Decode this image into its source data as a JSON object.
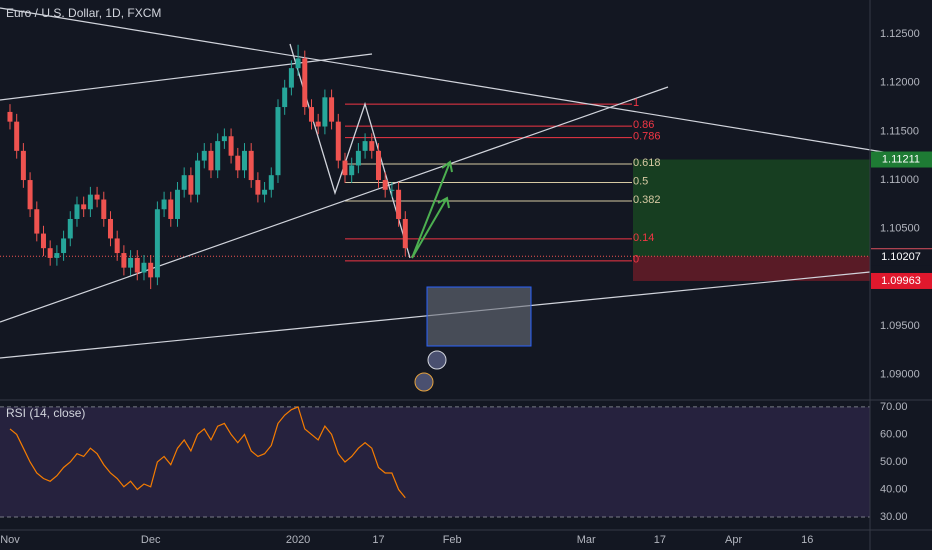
{
  "chart_data": [
    {
      "type": "candlestick",
      "title": "Euro / U.S. Dollar, 1D, FXCM",
      "x": [
        0,
        1,
        2,
        3,
        4,
        5,
        6,
        7,
        8,
        9,
        10,
        11,
        12,
        13,
        14,
        15,
        16,
        17,
        18,
        19,
        20,
        21,
        22,
        23,
        24,
        25,
        26,
        27,
        28,
        29,
        30,
        31,
        32,
        33,
        34,
        35,
        36,
        37,
        38,
        39,
        40,
        41,
        42,
        43,
        44,
        45,
        46,
        47,
        48,
        49,
        50,
        51,
        52,
        53,
        54,
        55,
        56,
        57,
        58,
        59
      ],
      "open": [
        1.117,
        1.116,
        1.113,
        1.11,
        1.107,
        1.1045,
        1.103,
        1.102,
        1.1025,
        1.104,
        1.106,
        1.1075,
        1.107,
        1.1085,
        1.108,
        1.106,
        1.104,
        1.1025,
        1.101,
        1.102,
        1.1005,
        1.1015,
        1.1,
        1.107,
        1.108,
        1.106,
        1.109,
        1.1105,
        1.1085,
        1.112,
        1.113,
        1.111,
        1.114,
        1.1145,
        1.1125,
        1.111,
        1.113,
        1.11,
        1.1085,
        1.109,
        1.1105,
        1.1175,
        1.1195,
        1.1215,
        1.1225,
        1.1175,
        1.116,
        1.1155,
        1.1185,
        1.116,
        1.112,
        1.1105,
        1.1115,
        1.113,
        1.114,
        1.113,
        1.11,
        1.109,
        1.109,
        1.106
      ],
      "high": [
        1.1178,
        1.1168,
        1.1138,
        1.1108,
        1.1078,
        1.1053,
        1.1038,
        1.1033,
        1.1048,
        1.1068,
        1.1083,
        1.1083,
        1.1093,
        1.1093,
        1.1088,
        1.1068,
        1.1048,
        1.1033,
        1.1028,
        1.1028,
        1.1023,
        1.1023,
        1.1078,
        1.1088,
        1.1088,
        1.1098,
        1.1113,
        1.1113,
        1.1128,
        1.1138,
        1.1138,
        1.1148,
        1.1153,
        1.1153,
        1.1133,
        1.1138,
        1.1138,
        1.1108,
        1.1098,
        1.1113,
        1.1183,
        1.1203,
        1.1223,
        1.1239,
        1.1233,
        1.1183,
        1.1168,
        1.1193,
        1.1193,
        1.1168,
        1.1128,
        1.1123,
        1.1138,
        1.1148,
        1.1148,
        1.1138,
        1.1108,
        1.1098,
        1.1098,
        1.1068
      ],
      "low": [
        1.1152,
        1.1122,
        1.1092,
        1.1062,
        1.1037,
        1.1022,
        1.1012,
        1.1012,
        1.1017,
        1.1032,
        1.1052,
        1.1062,
        1.1062,
        1.1072,
        1.1052,
        1.1032,
        1.1017,
        1.1002,
        1.1002,
        1.0997,
        1.0997,
        1.0988,
        1.0992,
        1.1062,
        1.1052,
        1.1052,
        1.1082,
        1.1077,
        1.1077,
        1.1112,
        1.1102,
        1.1102,
        1.1132,
        1.1117,
        1.1102,
        1.1102,
        1.1092,
        1.1077,
        1.1077,
        1.1082,
        1.1097,
        1.1167,
        1.1187,
        1.1207,
        1.1167,
        1.1152,
        1.1147,
        1.1147,
        1.1152,
        1.1112,
        1.1097,
        1.1097,
        1.1107,
        1.1122,
        1.1122,
        1.1092,
        1.1082,
        1.1082,
        1.1052,
        1.1022
      ],
      "close": [
        1.116,
        1.113,
        1.11,
        1.107,
        1.1045,
        1.103,
        1.102,
        1.1025,
        1.104,
        1.106,
        1.1075,
        1.107,
        1.1085,
        1.108,
        1.106,
        1.104,
        1.1025,
        1.101,
        1.102,
        1.1005,
        1.1015,
        1.1,
        1.107,
        1.108,
        1.106,
        1.109,
        1.1105,
        1.1085,
        1.112,
        1.113,
        1.111,
        1.114,
        1.1145,
        1.1125,
        1.111,
        1.113,
        1.11,
        1.1085,
        1.109,
        1.1105,
        1.1175,
        1.1195,
        1.1215,
        1.1225,
        1.1175,
        1.116,
        1.1155,
        1.1185,
        1.116,
        1.112,
        1.1105,
        1.1115,
        1.113,
        1.114,
        1.113,
        1.11,
        1.109,
        1.109,
        1.106,
        1.103
      ],
      "up_color": "#26a69a",
      "down_color": "#ef5350",
      "xlim": [
        -1.49,
        128.36
      ],
      "xticks": [
        {
          "value": 0,
          "label": "Nov"
        },
        {
          "value": 21,
          "label": "Dec"
        },
        {
          "value": 43,
          "label": "2020"
        },
        {
          "value": 55,
          "label": "17"
        },
        {
          "value": 66,
          "label": "Feb"
        },
        {
          "value": 86,
          "label": "Mar"
        },
        {
          "value": 97,
          "label": "17"
        },
        {
          "value": 108,
          "label": "Apr"
        },
        {
          "value": 119,
          "label": "16"
        }
      ],
      "ylim": [
        1.0874,
        1.1285
      ],
      "yticks": [
        {
          "value": 1.125,
          "label": "1.12500"
        },
        {
          "value": 1.12,
          "label": "1.12000"
        },
        {
          "value": 1.115,
          "label": "1.11500"
        },
        {
          "value": 1.11,
          "label": "1.11000"
        },
        {
          "value": 1.105,
          "label": "1.10500"
        },
        {
          "value": 1.095,
          "label": "1.09500"
        },
        {
          "value": 1.09,
          "label": "1.09000"
        }
      ],
      "fib_range": [
        1.1017,
        1.1178
      ],
      "fib_levels": [
        1,
        0.86,
        0.786,
        0.618,
        0.5,
        0.382,
        0.14,
        0
      ],
      "fib_colors": [
        "#f23645",
        "#f23645",
        "#f23645",
        "#d6c9a3",
        "#d6c9a3",
        "#d6c9a3",
        "#f23645",
        "#f23645"
      ],
      "position": {
        "target": 1.11211,
        "entry": 1.10217,
        "stop": 1.09963
      },
      "trendline_price": 1.10207
    },
    {
      "type": "line",
      "title": "RSI (14, close)",
      "x": [
        0,
        1,
        2,
        3,
        4,
        5,
        6,
        7,
        8,
        9,
        10,
        11,
        12,
        13,
        14,
        15,
        16,
        17,
        18,
        19,
        20,
        21,
        22,
        23,
        24,
        25,
        26,
        27,
        28,
        29,
        30,
        31,
        32,
        33,
        34,
        35,
        36,
        37,
        38,
        39,
        40,
        41,
        42,
        43,
        44,
        45,
        46,
        47,
        48,
        49,
        50,
        51,
        52,
        53,
        54,
        55,
        56,
        57,
        58,
        59
      ],
      "values": [
        62,
        60,
        55,
        50,
        46,
        44,
        43,
        45,
        48,
        50,
        53,
        52,
        55,
        53,
        49,
        46,
        44,
        41,
        43,
        40,
        42,
        41,
        50,
        52,
        49,
        55,
        58,
        54,
        60,
        62,
        58,
        63,
        64,
        60,
        57,
        60,
        54,
        52,
        53,
        56,
        64,
        67,
        69,
        70,
        62,
        60,
        58,
        63,
        60,
        53,
        50,
        52,
        55,
        57,
        55,
        48,
        46,
        46,
        40,
        37
      ],
      "color": "#f57c00",
      "ylim": [
        25.3,
        72.5
      ],
      "yticks": [
        {
          "value": 30,
          "label": "30.00"
        },
        {
          "value": 40,
          "label": "40.00"
        },
        {
          "value": 50,
          "label": "50.00"
        },
        {
          "value": 60,
          "label": "60.00"
        },
        {
          "value": 70,
          "label": "70.00"
        }
      ]
    }
  ]
}
